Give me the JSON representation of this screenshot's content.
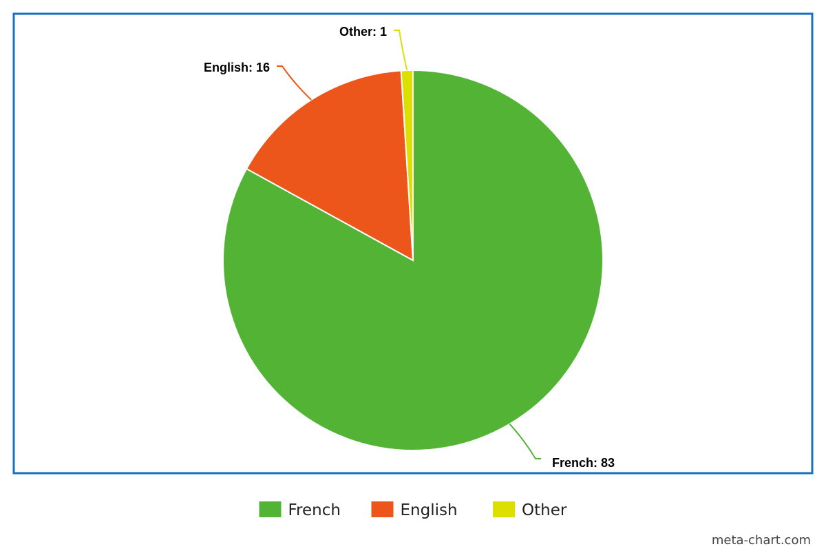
{
  "chart_data": {
    "type": "pie",
    "categories": [
      "French",
      "English",
      "Other"
    ],
    "values": [
      83,
      16,
      1
    ],
    "colors": [
      "#52b335",
      "#ec561b",
      "#dddf00"
    ],
    "labels": [
      "French: 83",
      "English: 16",
      "Other: 1"
    ],
    "legend": {
      "position": "bottom",
      "items": [
        "French",
        "English",
        "Other"
      ]
    },
    "start_angle": "top",
    "direction": "clockwise",
    "frame_color": "#1770c1"
  },
  "credit": "meta-chart.com"
}
